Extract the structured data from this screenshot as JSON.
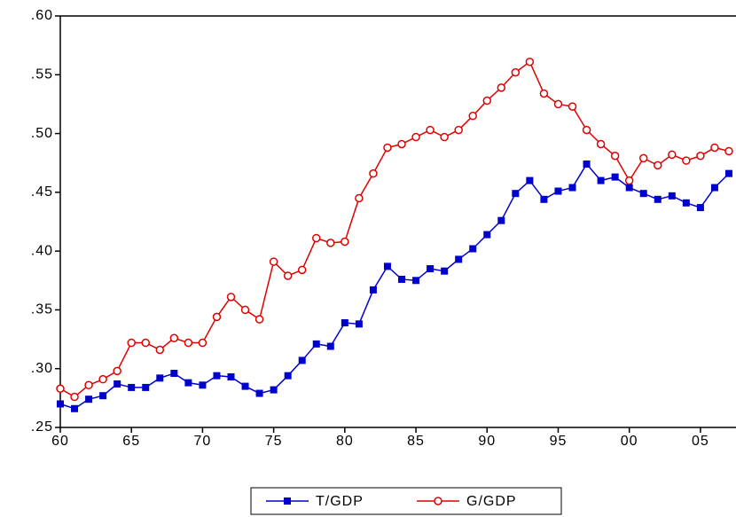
{
  "chart_data": {
    "type": "line",
    "x": [
      1960,
      1961,
      1962,
      1963,
      1964,
      1965,
      1966,
      1967,
      1968,
      1969,
      1970,
      1971,
      1972,
      1973,
      1974,
      1975,
      1976,
      1977,
      1978,
      1979,
      1980,
      1981,
      1982,
      1983,
      1984,
      1985,
      1986,
      1987,
      1988,
      1989,
      1990,
      1991,
      1992,
      1993,
      1994,
      1995,
      1996,
      1997,
      1998,
      1999,
      2000,
      2001,
      2002,
      2003,
      2004,
      2005,
      2006,
      2007
    ],
    "series": [
      {
        "name": "T/GDP",
        "color": "#0000cc",
        "marker": "square",
        "values": [
          0.27,
          0.266,
          0.274,
          0.277,
          0.287,
          0.284,
          0.284,
          0.292,
          0.296,
          0.288,
          0.286,
          0.294,
          0.293,
          0.285,
          0.279,
          0.282,
          0.294,
          0.307,
          0.321,
          0.319,
          0.339,
          0.338,
          0.367,
          0.387,
          0.376,
          0.375,
          0.385,
          0.383,
          0.393,
          0.402,
          0.414,
          0.426,
          0.449,
          0.46,
          0.444,
          0.451,
          0.454,
          0.474,
          0.46,
          0.463,
          0.454,
          0.449,
          0.444,
          0.447,
          0.441,
          0.437,
          0.454,
          0.466
        ]
      },
      {
        "name": "G/GDP",
        "color": "#e00000",
        "marker": "circle",
        "values": [
          0.283,
          0.276,
          0.286,
          0.291,
          0.298,
          0.322,
          0.322,
          0.316,
          0.326,
          0.322,
          0.322,
          0.344,
          0.361,
          0.35,
          0.342,
          0.391,
          0.379,
          0.384,
          0.411,
          0.407,
          0.408,
          0.445,
          0.466,
          0.488,
          0.491,
          0.497,
          0.503,
          0.497,
          0.503,
          0.515,
          0.528,
          0.539,
          0.552,
          0.561,
          0.534,
          0.525,
          0.523,
          0.503,
          0.491,
          0.481,
          0.46,
          0.479,
          0.473,
          0.482,
          0.477,
          0.481,
          0.488,
          0.485
        ]
      }
    ],
    "xlim": [
      1960,
      2007.5
    ],
    "xticks": [
      {
        "value": 1960,
        "label": "60"
      },
      {
        "value": 1965,
        "label": "65"
      },
      {
        "value": 1970,
        "label": "70"
      },
      {
        "value": 1975,
        "label": "75"
      },
      {
        "value": 1980,
        "label": "80"
      },
      {
        "value": 1985,
        "label": "85"
      },
      {
        "value": 1990,
        "label": "90"
      },
      {
        "value": 1995,
        "label": "95"
      },
      {
        "value": 2000,
        "label": "00"
      },
      {
        "value": 2005,
        "label": "05"
      }
    ],
    "ylim": [
      0.25,
      0.6
    ],
    "yticks": [
      {
        "value": 0.25,
        "label": ".25"
      },
      {
        "value": 0.3,
        "label": ".30"
      },
      {
        "value": 0.35,
        "label": ".35"
      },
      {
        "value": 0.4,
        "label": ".40"
      },
      {
        "value": 0.45,
        "label": ".45"
      },
      {
        "value": 0.5,
        "label": ".50"
      },
      {
        "value": 0.55,
        "label": ".55"
      },
      {
        "value": 0.6,
        "label": ".60"
      }
    ],
    "grid": false,
    "legend": "bottom"
  }
}
